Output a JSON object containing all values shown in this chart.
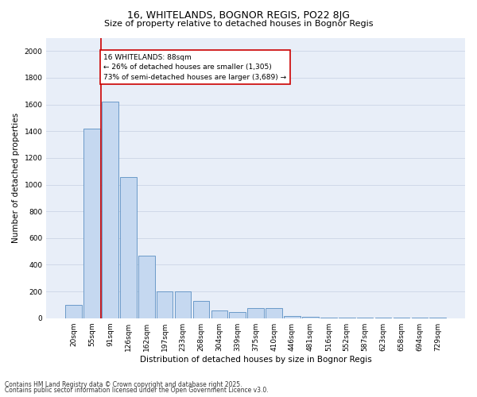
{
  "title1": "16, WHITELANDS, BOGNOR REGIS, PO22 8JG",
  "title2": "Size of property relative to detached houses in Bognor Regis",
  "xlabel": "Distribution of detached houses by size in Bognor Regis",
  "ylabel": "Number of detached properties",
  "categories": [
    "20sqm",
    "55sqm",
    "91sqm",
    "126sqm",
    "162sqm",
    "197sqm",
    "233sqm",
    "268sqm",
    "304sqm",
    "339sqm",
    "375sqm",
    "410sqm",
    "446sqm",
    "481sqm",
    "516sqm",
    "552sqm",
    "587sqm",
    "623sqm",
    "658sqm",
    "694sqm",
    "729sqm"
  ],
  "values": [
    100,
    1420,
    1620,
    1055,
    470,
    200,
    200,
    130,
    55,
    45,
    75,
    75,
    18,
    8,
    4,
    4,
    2,
    2,
    2,
    2,
    2
  ],
  "bar_color": "#c5d8f0",
  "bar_edge_color": "#5a8fc2",
  "ylim": [
    0,
    2100
  ],
  "yticks": [
    0,
    200,
    400,
    600,
    800,
    1000,
    1200,
    1400,
    1600,
    1800,
    2000
  ],
  "annotation_text": "16 WHITELANDS: 88sqm\n← 26% of detached houses are smaller (1,305)\n73% of semi-detached houses are larger (3,689) →",
  "annotation_box_color": "#ffffff",
  "annotation_box_edge_color": "#cc0000",
  "footer1": "Contains HM Land Registry data © Crown copyright and database right 2025.",
  "footer2": "Contains public sector information licensed under the Open Government Licence v3.0.",
  "grid_color": "#d0d8e8",
  "background_color": "#e8eef8",
  "title1_fontsize": 9,
  "title2_fontsize": 8,
  "ylabel_fontsize": 7.5,
  "xlabel_fontsize": 7.5,
  "tick_fontsize": 6.5,
  "annotation_fontsize": 6.5,
  "footer_fontsize": 5.5
}
